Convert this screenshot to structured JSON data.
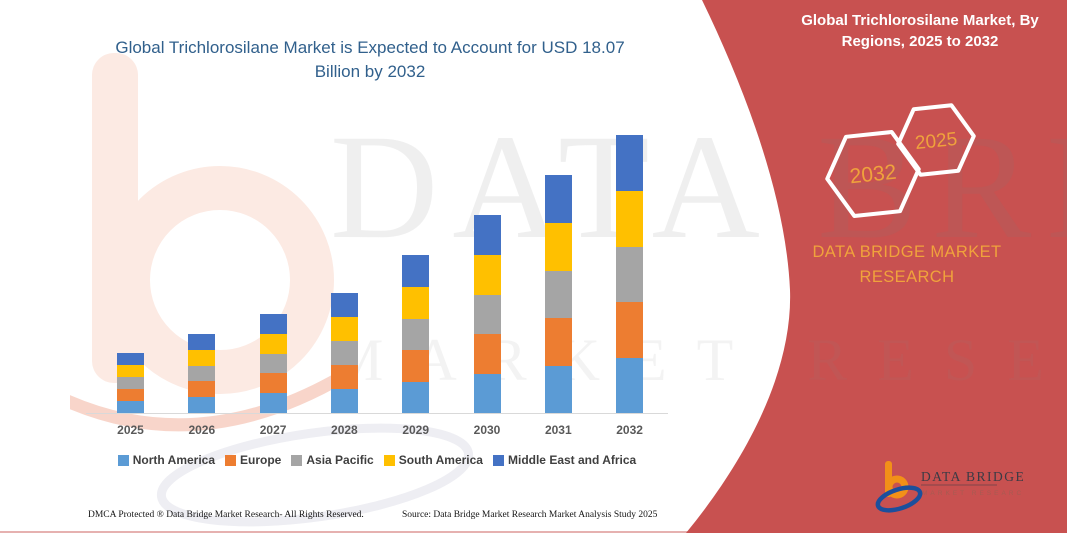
{
  "chart": {
    "title": "Global Trichlorosilane Market is Expected to Account for USD 18.07 Billion by 2032"
  },
  "chart_data": {
    "type": "bar",
    "stacked": true,
    "title": "Global Trichlorosilane Market is Expected to Account for USD 18.07 Billion by 2032",
    "unit": "USD Billion",
    "categories": [
      "2025",
      "2026",
      "2027",
      "2028",
      "2029",
      "2030",
      "2031",
      "2032"
    ],
    "series": [
      {
        "name": "North America",
        "color": "#5B9BD5",
        "values": [
          0.78,
          1.03,
          1.29,
          1.56,
          2.05,
          2.57,
          3.09,
          3.61
        ]
      },
      {
        "name": "Europe",
        "color": "#ED7D31",
        "values": [
          0.78,
          1.03,
          1.29,
          1.56,
          2.05,
          2.57,
          3.09,
          3.61
        ]
      },
      {
        "name": "Asia Pacific",
        "color": "#A5A5A5",
        "values": [
          0.78,
          1.03,
          1.29,
          1.56,
          2.05,
          2.57,
          3.09,
          3.61
        ]
      },
      {
        "name": "South America",
        "color": "#FFC000",
        "values": [
          0.78,
          1.03,
          1.29,
          1.56,
          2.06,
          2.58,
          3.1,
          3.62
        ]
      },
      {
        "name": "Middle East and Africa",
        "color": "#4472C4",
        "values": [
          0.78,
          1.02,
          1.28,
          1.56,
          2.06,
          2.58,
          3.1,
          3.62
        ]
      }
    ],
    "totals": [
      3.9,
      5.14,
      6.44,
      7.8,
      10.27,
      12.87,
      15.47,
      18.07
    ],
    "ylim": [
      0,
      20
    ],
    "grid": false,
    "y_axis_visible": false,
    "legend_position": "bottom"
  },
  "side_panel": {
    "title": "Global Trichlorosilane Market, By Regions, 2025 to 2032",
    "hexagon_back_label": "2032",
    "hexagon_front_label": "2025",
    "brand_text": "DATA BRIDGE MARKET RESEARCH",
    "bg_color": "#C85150",
    "accent_color": "#F0A23C"
  },
  "logo": {
    "line1": "DATA BRIDGE",
    "line2": "MARKET RESEARCH"
  },
  "watermark": {
    "line1": "DATA BRIDGE",
    "line2": "MARKET RESEARCH"
  },
  "footer": {
    "dmca": "DMCA Protected ® Data Bridge Market Research-  All Rights Reserved.",
    "source": "Source: Data Bridge Market Research  Market Analysis Study 2025"
  }
}
